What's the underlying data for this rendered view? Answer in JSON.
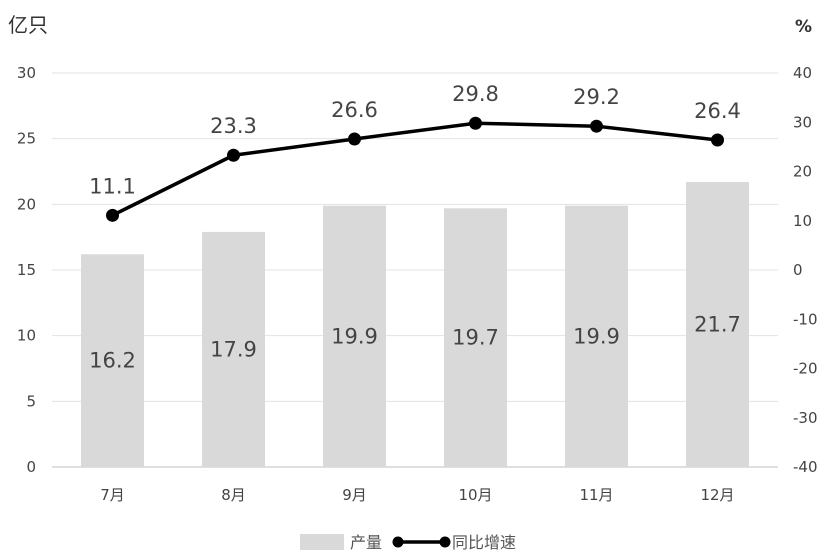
{
  "chart_data": {
    "type": "bar+line",
    "categories": [
      "7月",
      "8月",
      "9月",
      "10月",
      "11月",
      "12月"
    ],
    "series": [
      {
        "name": "产量",
        "type": "bar",
        "axis": "left",
        "values": [
          16.2,
          17.9,
          19.9,
          19.7,
          19.9,
          21.7
        ],
        "color": "#d9d9d9"
      },
      {
        "name": "同比增速",
        "type": "line",
        "axis": "right",
        "values": [
          11.1,
          23.3,
          26.6,
          29.8,
          29.2,
          26.4
        ],
        "color": "#000000"
      }
    ],
    "y_left": {
      "unit": "亿只",
      "min": 0,
      "max": 30,
      "step": 5
    },
    "y_right": {
      "unit": "%",
      "min": -40,
      "max": 40,
      "step": 10
    },
    "grid": true,
    "legend_position": "bottom"
  }
}
